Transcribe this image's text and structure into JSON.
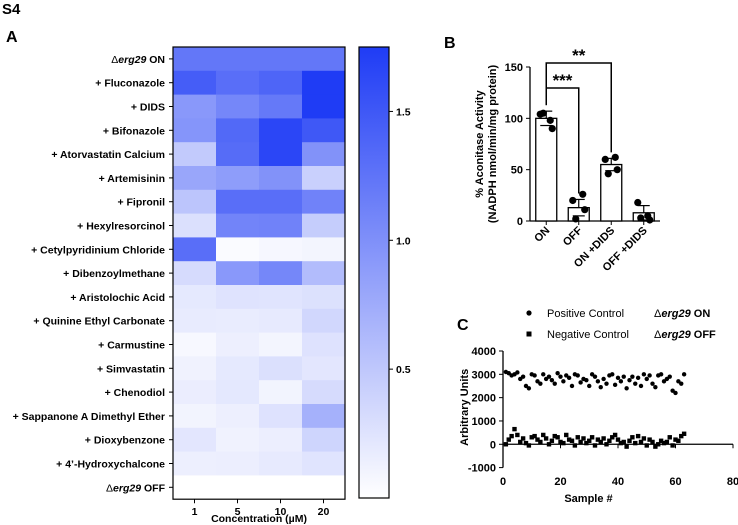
{
  "figure": {
    "label": "S4"
  },
  "panel_a": {
    "letter": "A"
  },
  "panel_b": {
    "letter": "B"
  },
  "panel_c": {
    "letter": "C"
  },
  "colors": {
    "low": "#ffffff",
    "high": "#1f3cf5",
    "bar_fill": "#ffffff",
    "stroke": "#000000"
  },
  "chart_data": [
    {
      "id": "heatmap",
      "type": "heatmap",
      "xlabel": "Concentration (µM)",
      "columns": [
        "1",
        "5",
        "10",
        "20"
      ],
      "rows": [
        {
          "prefix": "Δ",
          "name": "erg29",
          "suffix": " ON",
          "strain": true
        },
        {
          "name": "+ Fluconazole"
        },
        {
          "name": "+ DIDS"
        },
        {
          "name": "+ Bifonazole"
        },
        {
          "name": "+ Atorvastatin Calcium"
        },
        {
          "name": "+ Artemisinin"
        },
        {
          "name": "+ Fipronil"
        },
        {
          "name": "+ Hexylresorcinol"
        },
        {
          "name": "+ Cetylpyridinium Chloride"
        },
        {
          "name": "+ Dibenzoylmethane"
        },
        {
          "name": "+ Aristolochic Acid"
        },
        {
          "name": "+ Quinine Ethyl Carbonate"
        },
        {
          "name": "+ Carmustine"
        },
        {
          "name": "+ Simvastatin"
        },
        {
          "name": "+ Chenodiol"
        },
        {
          "name": "+ Sappanone A Dimethyl Ether"
        },
        {
          "name": "+ Dioxybenzone"
        },
        {
          "name": "+ 4’-Hydroxychalcone"
        },
        {
          "prefix": "Δ",
          "name": "erg29",
          "suffix": " OFF",
          "strain": true
        }
      ],
      "values": [
        [
          1.22,
          1.22,
          1.22,
          1.22
        ],
        [
          1.45,
          1.3,
          1.38,
          1.75
        ],
        [
          0.92,
          1.08,
          1.2,
          1.75
        ],
        [
          0.95,
          1.35,
          1.66,
          1.5
        ],
        [
          0.48,
          1.32,
          1.66,
          0.98
        ],
        [
          0.8,
          0.88,
          0.98,
          0.42
        ],
        [
          0.52,
          1.3,
          1.3,
          1.12
        ],
        [
          0.28,
          1.1,
          1.12,
          0.45
        ],
        [
          1.3,
          0.04,
          0.07,
          0.09
        ],
        [
          0.32,
          0.92,
          1.08,
          0.6
        ],
        [
          0.2,
          0.25,
          0.24,
          0.27
        ],
        [
          0.18,
          0.17,
          0.19,
          0.36
        ],
        [
          0.06,
          0.14,
          0.09,
          0.26
        ],
        [
          0.12,
          0.2,
          0.28,
          0.22
        ],
        [
          0.16,
          0.21,
          0.1,
          0.32
        ],
        [
          0.1,
          0.14,
          0.26,
          0.7
        ],
        [
          0.22,
          0.12,
          0.15,
          0.38
        ],
        [
          0.14,
          0.15,
          0.19,
          0.24
        ],
        [
          0.0,
          0.0,
          0.0,
          0.0
        ]
      ],
      "colorbar": {
        "min": 0,
        "max": 1.75,
        "ticks": [
          0.5,
          1.0,
          1.5
        ],
        "tick_labels": [
          "0.5",
          "1.0",
          "1.5"
        ]
      }
    },
    {
      "id": "aconitase",
      "type": "bar",
      "ylabel_lines": [
        "% Aconitase Activity",
        "(NADPH nmol/min/mg protein)"
      ],
      "categories": [
        "ON",
        "OFF",
        "ON +DIDS",
        "OFF +DIDS"
      ],
      "values": [
        100,
        13,
        55,
        8
      ],
      "errors": [
        7,
        8,
        6,
        7
      ],
      "points": [
        [
          104,
          90,
          105,
          98
        ],
        [
          20,
          11,
          2,
          26
        ],
        [
          60,
          50,
          46,
          62
        ],
        [
          18,
          1,
          3,
          5
        ]
      ],
      "ylim": [
        0,
        150
      ],
      "yticks": [
        0,
        50,
        100,
        150
      ],
      "significance": [
        {
          "from": 0,
          "to": 1,
          "label": "***"
        },
        {
          "from": 0,
          "to": 2,
          "label": "**"
        }
      ]
    },
    {
      "id": "controls",
      "type": "scatter",
      "xlabel": "Sample #",
      "ylabel": "Arbitrary Units",
      "xlim": [
        0,
        80
      ],
      "ylim": [
        -1000,
        4000
      ],
      "xticks": [
        0,
        20,
        40,
        60,
        80
      ],
      "yticks": [
        -1000,
        0,
        1000,
        2000,
        3000,
        4000
      ],
      "series": [
        {
          "name": "Positive Control",
          "strain_prefix": "Δ",
          "strain_name": "erg29",
          "strain_suffix": " ON",
          "marker": "circle",
          "x": [
            1,
            2,
            3,
            4,
            5,
            6,
            7,
            8,
            9,
            10,
            11,
            12,
            13,
            14,
            15,
            16,
            17,
            18,
            19,
            20,
            21,
            22,
            23,
            24,
            25,
            26,
            27,
            28,
            29,
            30,
            31,
            32,
            33,
            34,
            35,
            36,
            37,
            38,
            39,
            40,
            41,
            42,
            43,
            44,
            45,
            46,
            47,
            48,
            49,
            50,
            51,
            52,
            53,
            54,
            55,
            56,
            57,
            58,
            59,
            60,
            61,
            62,
            63
          ],
          "y": [
            3100,
            3050,
            2950,
            3000,
            3080,
            2800,
            2900,
            2500,
            2400,
            3000,
            2950,
            2700,
            2600,
            3000,
            2800,
            2900,
            2750,
            2600,
            3050,
            2900,
            2700,
            2950,
            2850,
            2500,
            3000,
            2950,
            2650,
            2800,
            2750,
            2500,
            3000,
            2900,
            2700,
            2450,
            2800,
            2600,
            2950,
            3000,
            2550,
            2850,
            2700,
            2900,
            2400,
            2750,
            2900,
            2600,
            2850,
            2500,
            3000,
            2800,
            2950,
            2600,
            2450,
            2950,
            3000,
            2700,
            2800,
            2900,
            2300,
            2200,
            2700,
            2600,
            3000
          ]
        },
        {
          "name": "Negative Control",
          "strain_prefix": "Δ",
          "strain_name": "erg29",
          "strain_suffix": " OFF",
          "marker": "square",
          "x": [
            1,
            2,
            3,
            4,
            5,
            6,
            7,
            8,
            9,
            10,
            11,
            12,
            13,
            14,
            15,
            16,
            17,
            18,
            19,
            20,
            21,
            22,
            23,
            24,
            25,
            26,
            27,
            28,
            29,
            30,
            31,
            32,
            33,
            34,
            35,
            36,
            37,
            38,
            39,
            40,
            41,
            42,
            43,
            44,
            45,
            46,
            47,
            48,
            49,
            50,
            51,
            52,
            53,
            54,
            55,
            56,
            57,
            58,
            59,
            60,
            61,
            62,
            63
          ],
          "y": [
            0,
            200,
            350,
            650,
            400,
            100,
            250,
            50,
            -50,
            300,
            350,
            200,
            100,
            400,
            250,
            0,
            150,
            350,
            300,
            100,
            50,
            400,
            200,
            150,
            -50,
            300,
            100,
            250,
            50,
            150,
            300,
            -50,
            200,
            100,
            250,
            0,
            150,
            300,
            400,
            200,
            50,
            100,
            -100,
            150,
            300,
            50,
            350,
            100,
            250,
            -50,
            200,
            100,
            -100,
            0,
            150,
            50,
            100,
            300,
            -50,
            200,
            150,
            350,
            450
          ]
        }
      ]
    }
  ]
}
